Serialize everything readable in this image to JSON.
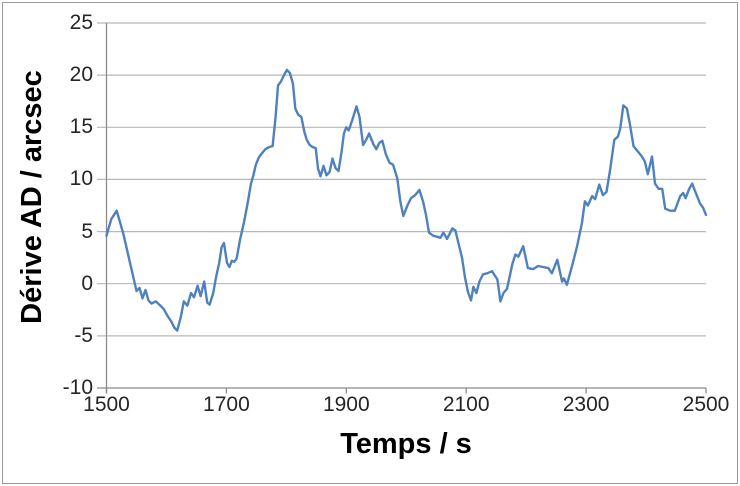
{
  "chart_data": {
    "type": "line",
    "title": "",
    "xlabel": "Temps / s",
    "ylabel": "Dérive AD / arcsec",
    "xlim": [
      1500,
      2500
    ],
    "ylim": [
      -10,
      25
    ],
    "x_ticks": [
      1500,
      1700,
      1900,
      2100,
      2300,
      2500
    ],
    "y_ticks": [
      -10,
      -5,
      0,
      5,
      10,
      15,
      20,
      25
    ],
    "grid": "horizontal-major",
    "legend": "none",
    "colors": {
      "series": "#4F81BD",
      "gridline": "#B8B8B8",
      "axis": "#8A8A8A",
      "tick_text": "#262626",
      "title_text": "#000000",
      "frame_border": "#9B9B9B",
      "background": "#FFFFFF"
    },
    "series": [
      {
        "x": [
          1500,
          1508,
          1517,
          1528,
          1540,
          1550,
          1555,
          1560,
          1565,
          1570,
          1575,
          1582,
          1588,
          1595,
          1602,
          1608,
          1613,
          1618,
          1624,
          1629,
          1635,
          1641,
          1646,
          1652,
          1657,
          1663,
          1668,
          1672,
          1678,
          1683,
          1688,
          1692,
          1696,
          1701,
          1705,
          1709,
          1713,
          1717,
          1723,
          1729,
          1735,
          1741,
          1745,
          1749,
          1754,
          1759,
          1765,
          1771,
          1777,
          1782,
          1786,
          1791,
          1796,
          1801,
          1806,
          1811,
          1815,
          1820,
          1825,
          1830,
          1834,
          1839,
          1844,
          1849,
          1853,
          1857,
          1862,
          1867,
          1872,
          1877,
          1882,
          1887,
          1892,
          1896,
          1900,
          1904,
          1910,
          1917,
          1922,
          1928,
          1933,
          1938,
          1945,
          1950,
          1955,
          1960,
          1966,
          1972,
          1978,
          1985,
          1990,
          1995,
          2002,
          2008,
          2015,
          2022,
          2028,
          2033,
          2038,
          2045,
          2052,
          2057,
          2062,
          2068,
          2077,
          2082,
          2087,
          2093,
          2098,
          2103,
          2108,
          2112,
          2117,
          2122,
          2128,
          2135,
          2143,
          2152,
          2157,
          2162,
          2168,
          2177,
          2182,
          2187,
          2195,
          2203,
          2212,
          2220,
          2228,
          2237,
          2243,
          2252,
          2260,
          2263,
          2268,
          2277,
          2285,
          2293,
          2298,
          2303,
          2310,
          2315,
          2322,
          2328,
          2334,
          2340,
          2347,
          2353,
          2357,
          2362,
          2368,
          2373,
          2379,
          2386,
          2393,
          2398,
          2403,
          2410,
          2415,
          2421,
          2427,
          2432,
          2440,
          2448,
          2457,
          2462,
          2466,
          2472,
          2477,
          2483,
          2490,
          2495,
          2500
        ],
        "values": [
          4.6,
          6.2,
          7.0,
          4.8,
          1.8,
          -0.7,
          -0.4,
          -1.4,
          -0.6,
          -1.6,
          -1.9,
          -1.7,
          -2.0,
          -2.4,
          -3.1,
          -3.6,
          -4.2,
          -4.5,
          -3.2,
          -1.7,
          -2.1,
          -0.9,
          -1.3,
          -0.2,
          -1.2,
          0.2,
          -1.8,
          -2.0,
          -0.9,
          0.7,
          2.0,
          3.5,
          3.9,
          2.0,
          1.6,
          2.2,
          2.1,
          2.4,
          4.3,
          5.8,
          7.6,
          9.6,
          10.4,
          11.4,
          12.1,
          12.5,
          12.9,
          13.1,
          13.2,
          16.0,
          19.0,
          19.4,
          20.0,
          20.5,
          20.2,
          19.2,
          16.8,
          16.2,
          16.0,
          14.6,
          13.8,
          13.3,
          13.1,
          13.0,
          11.0,
          10.3,
          11.3,
          10.4,
          10.7,
          12.0,
          11.1,
          10.8,
          12.6,
          14.4,
          15.0,
          14.7,
          15.7,
          17.0,
          16.0,
          13.3,
          13.8,
          14.4,
          13.4,
          12.9,
          13.5,
          13.7,
          12.4,
          11.6,
          11.4,
          10.1,
          7.9,
          6.5,
          7.5,
          8.2,
          8.5,
          9.0,
          7.9,
          6.6,
          4.9,
          4.6,
          4.5,
          4.4,
          4.9,
          4.3,
          5.3,
          5.1,
          3.9,
          2.5,
          0.6,
          -0.8,
          -1.6,
          -0.3,
          -0.9,
          0.2,
          0.9,
          1.0,
          1.2,
          0.4,
          -1.7,
          -0.9,
          -0.5,
          1.9,
          2.8,
          2.6,
          3.6,
          1.5,
          1.4,
          1.7,
          1.6,
          1.5,
          1.0,
          2.3,
          0.2,
          0.5,
          -0.1,
          1.8,
          3.6,
          5.8,
          7.9,
          7.5,
          8.4,
          8.1,
          9.5,
          8.5,
          8.8,
          10.9,
          13.8,
          14.1,
          14.9,
          17.1,
          16.8,
          15.3,
          13.2,
          12.7,
          12.2,
          11.7,
          10.5,
          12.2,
          9.6,
          9.1,
          9.1,
          7.2,
          7.0,
          7.0,
          8.4,
          8.7,
          8.2,
          9.1,
          9.6,
          8.7,
          7.7,
          7.3,
          6.6
        ]
      }
    ]
  }
}
